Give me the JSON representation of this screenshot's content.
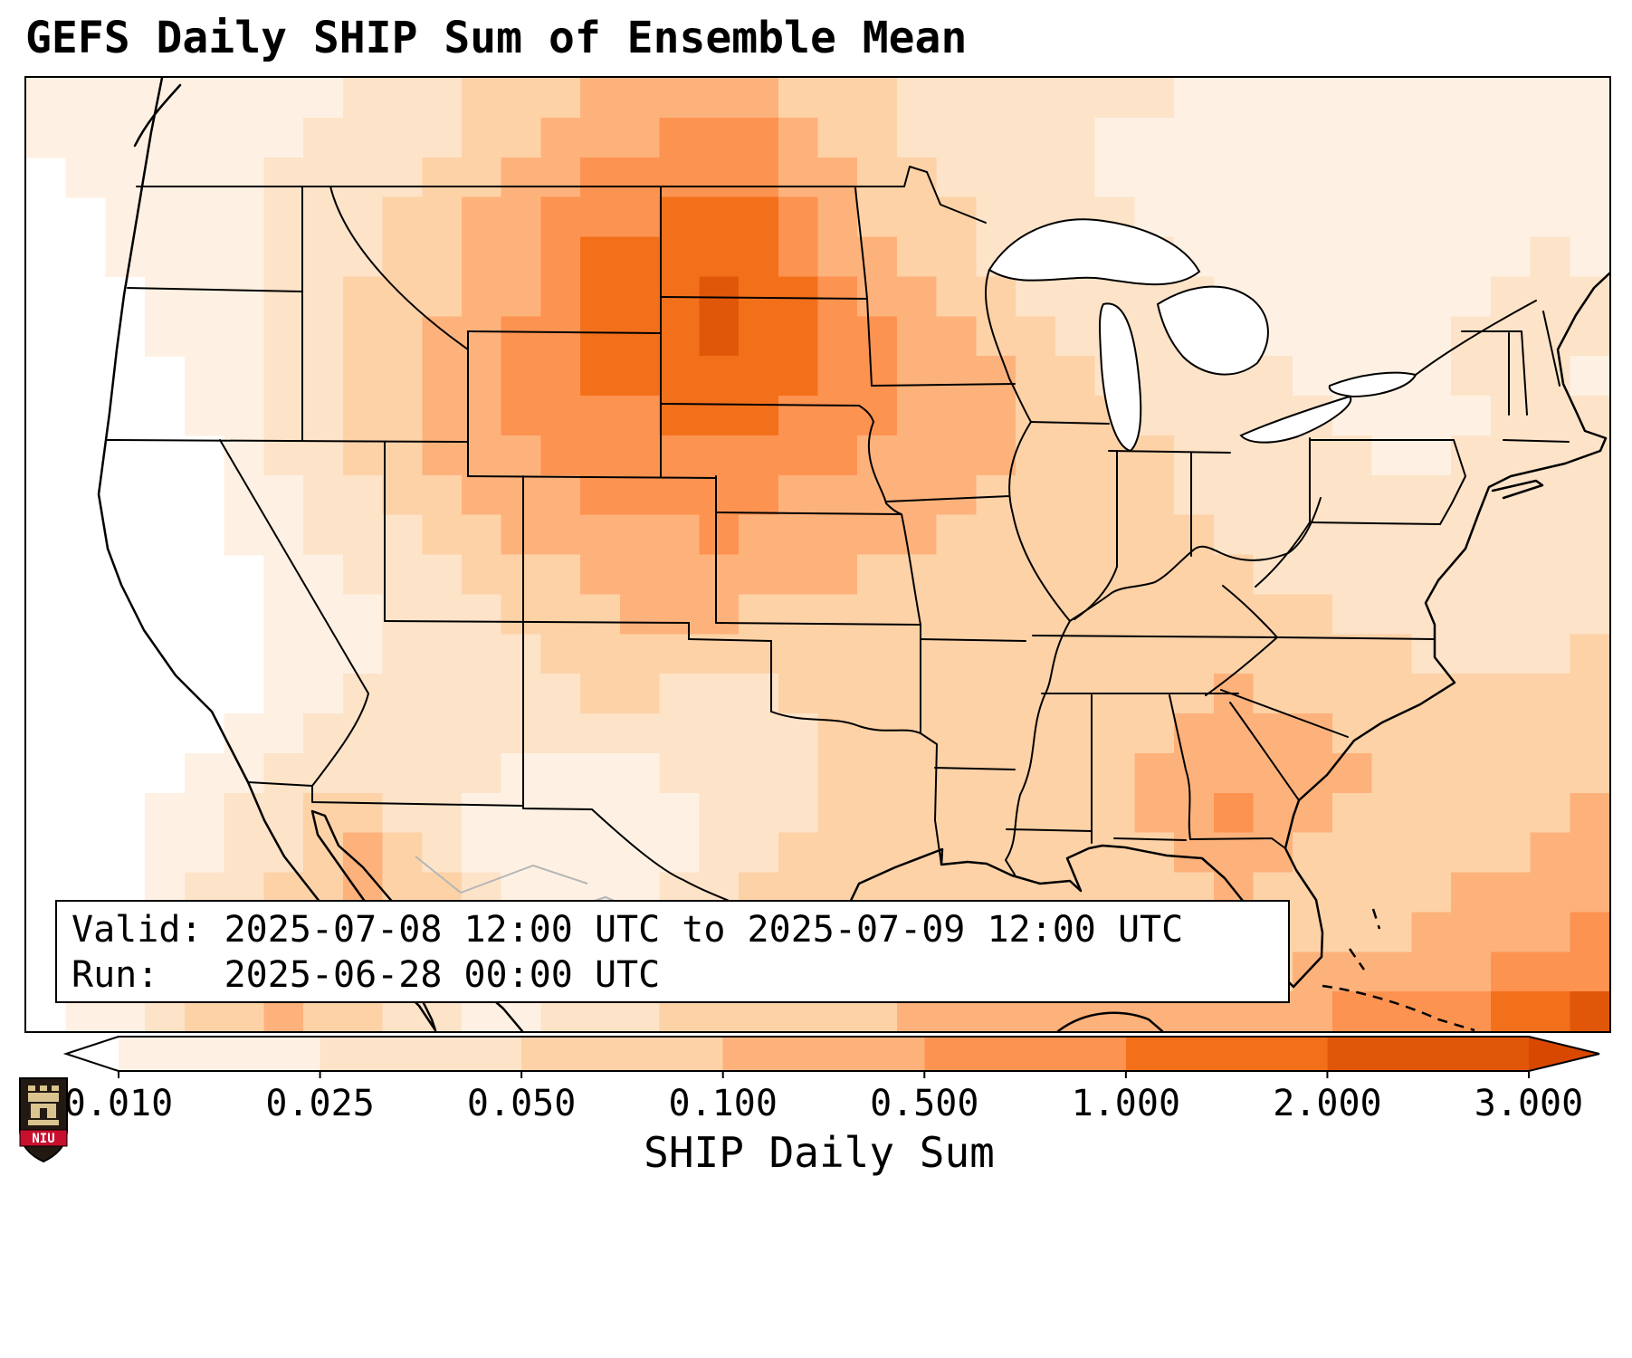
{
  "title": "GEFS Daily SHIP Sum of Ensemble Mean",
  "info_box": {
    "valid_line": "Valid: 2025-07-08 12:00 UTC to 2025-07-09 12:00 UTC",
    "run_line": "Run:   2025-06-28 00:00 UTC"
  },
  "colorbar": {
    "label": "SHIP Daily Sum",
    "ticks": [
      "0.010",
      "0.025",
      "0.050",
      "0.100",
      "0.500",
      "1.000",
      "2.000",
      "3.000"
    ],
    "boundaries": [
      0.01,
      0.025,
      0.05,
      0.1,
      0.5,
      1.0,
      2.0,
      3.0
    ],
    "segment_colors": [
      "#fef1e3",
      "#fde3c8",
      "#fdd2a7",
      "#fdb27c",
      "#fd9351",
      "#f3701b",
      "#e1570a"
    ],
    "under_color": "#ffffff",
    "over_color": "#d94801",
    "outline_color": "#000000"
  },
  "logo": {
    "text": "NIU",
    "shield_color": "#221a12",
    "band_color": "#c8102e",
    "castle_color": "#d9c48f",
    "text_color": "#ffffff"
  },
  "chart_data": {
    "type": "heatmap",
    "title": "GEFS Daily SHIP Sum of Ensemble Mean",
    "colorbar_label": "SHIP Daily Sum",
    "levels": [
      0.01,
      0.025,
      0.05,
      0.1,
      0.5,
      1.0,
      2.0,
      3.0
    ],
    "valid": "2025-07-08 12:00 UTC to 2025-07-09 12:00 UTC",
    "run": "2025-06-28 00:00 UTC",
    "region": "CONUS",
    "legend_position": "bottom",
    "palette": [
      "#ffffff",
      "#fef1e3",
      "#fde3c8",
      "#fdd2a7",
      "#fdb27c",
      "#fd9351",
      "#f3701b",
      "#e1570a"
    ],
    "grid_cols": 40,
    "grid_rows_count": 24,
    "encoding": "each digit 0-7 indexes palette, rows north to south",
    "grid_rows": [
      "1111111122233344444333222222211111111111",
      "1111111222233444555433222221111111111111",
      "0111112222334455555443322221111111111111",
      "0011112223344555666543332222111111111111",
      "0011112223344566666544332222211111111121",
      "0001112233344566676654433222221111111222",
      "0001112233445566676655443322222111112222",
      "0000112233445566666655444332222211112221",
      "0000112233445555666555444333222221111222",
      "0000012233444555555554444333322222112222",
      "0000011223344455555444443333322222222222",
      "0000011222334444454444433333332222222222",
      "0000001122233344444443333333333222222222",
      "0000001112223334443333333333333332222222",
      "0000001112222333333333333333333333322223",
      "0000001122222233222333333333334333333333",
      "0000011222222222222233333333344443333333",
      "0000112222221111222233333333444444333333",
      "0001122332211111122233333333445443333334",
      "0001122343211111122333333333344433333344",
      "0001223343321111223333333333334333334444",
      "0012233432211112233343333333333333344445",
      "0012233332221122333333334433333344444555",
      "0112334332211222333333444444444445555667"
    ]
  }
}
